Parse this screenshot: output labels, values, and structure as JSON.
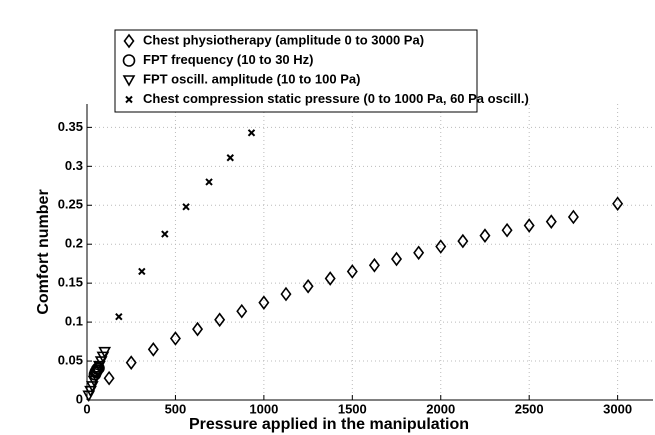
{
  "chart_data": {
    "type": "scatter",
    "xlabel": "Pressure applied in the manipulation",
    "ylabel": "Comfort number",
    "xlim": [
      0,
      3200
    ],
    "ylim": [
      0,
      0.38
    ],
    "xticks": [
      0,
      500,
      1000,
      1500,
      2000,
      2500,
      3000
    ],
    "yticks": [
      0,
      0.05,
      0.1,
      0.15,
      0.2,
      0.25,
      0.3,
      0.35
    ],
    "grid": true,
    "legend": "top",
    "series": [
      {
        "name": "Chest physiotherapy (amplitude 0 to 3000 Pa)",
        "marker": "diamond",
        "color": "#000000",
        "x": [
          125,
          250,
          375,
          500,
          625,
          750,
          875,
          1000,
          1125,
          1250,
          1375,
          1500,
          1625,
          1750,
          1875,
          2000,
          2125,
          2250,
          2375,
          2500,
          2625,
          2750,
          3000
        ],
        "values": [
          0.028,
          0.048,
          0.065,
          0.079,
          0.091,
          0.103,
          0.114,
          0.125,
          0.136,
          0.146,
          0.156,
          0.165,
          0.173,
          0.181,
          0.189,
          0.197,
          0.204,
          0.211,
          0.218,
          0.224,
          0.229,
          0.235,
          0.252
        ]
      },
      {
        "name": "FPT frequency (10 to 30 Hz)",
        "marker": "circle",
        "color": "#000000",
        "x": [
          45,
          50,
          55,
          60,
          65
        ],
        "values": [
          0.033,
          0.036,
          0.038,
          0.04,
          0.041
        ]
      },
      {
        "name": "FPT oscill. amplitude (10 to 100 Pa)",
        "marker": "triangle",
        "color": "#000000",
        "x": [
          10,
          20,
          30,
          40,
          50,
          60,
          70,
          80,
          90,
          100
        ],
        "values": [
          0.006,
          0.012,
          0.018,
          0.025,
          0.031,
          0.037,
          0.044,
          0.05,
          0.056,
          0.062
        ]
      },
      {
        "name": "Chest compression static pressure (0 to 1000 Pa, 60 Pa oscill.)",
        "marker": "cross",
        "color": "#000000",
        "x": [
          180,
          310,
          440,
          560,
          690,
          810,
          930
        ],
        "values": [
          0.107,
          0.165,
          0.213,
          0.248,
          0.28,
          0.311,
          0.343
        ]
      }
    ]
  }
}
